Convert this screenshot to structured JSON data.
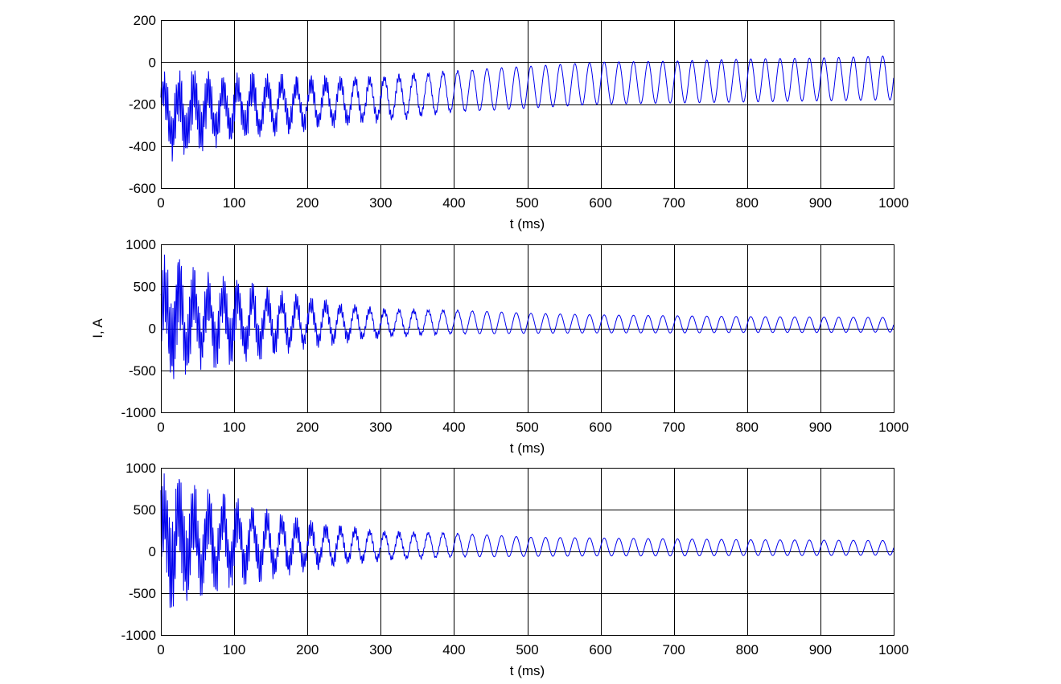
{
  "chart_data": [
    {
      "type": "line",
      "title": "",
      "xlabel": "t (ms)",
      "ylabel": "",
      "xlim": [
        0,
        1000
      ],
      "ylim": [
        -600,
        200
      ],
      "xticks": [
        "0",
        "100",
        "200",
        "300",
        "400",
        "500",
        "600",
        "700",
        "800",
        "900",
        "1000"
      ],
      "yticks": [
        "200",
        "0",
        "-200",
        "-400",
        "-600"
      ],
      "grid": true,
      "series": [
        {
          "color": "#0000ee",
          "description_of_values": "oscillating signal, 50 Hz, decaying noisy transient",
          "points": [
            {
              "t": 0,
              "min": -310,
              "max": -50
            },
            {
              "t": 10,
              "min": -480,
              "max": -40
            },
            {
              "t": 50,
              "min": -430,
              "max": -40
            },
            {
              "t": 100,
              "min": -390,
              "max": -50
            },
            {
              "t": 200,
              "min": -330,
              "max": -60
            },
            {
              "t": 300,
              "min": -290,
              "max": -60
            },
            {
              "t": 400,
              "min": -240,
              "max": -40
            },
            {
              "t": 500,
              "min": -220,
              "max": -20
            },
            {
              "t": 600,
              "min": -200,
              "max": 0
            },
            {
              "t": 700,
              "min": -195,
              "max": 5
            },
            {
              "t": 800,
              "min": -190,
              "max": 15
            },
            {
              "t": 900,
              "min": -185,
              "max": 20
            },
            {
              "t": 1000,
              "min": -180,
              "max": 30
            }
          ]
        }
      ]
    },
    {
      "type": "line",
      "title": "",
      "xlabel": "t (ms)",
      "ylabel": "I, A",
      "xlim": [
        0,
        1000
      ],
      "ylim": [
        -1000,
        1000
      ],
      "xticks": [
        "0",
        "100",
        "200",
        "300",
        "400",
        "500",
        "600",
        "700",
        "800",
        "900",
        "1000"
      ],
      "yticks": [
        "1000",
        "500",
        "0",
        "-500",
        "-1000"
      ],
      "grid": true,
      "series": [
        {
          "color": "#0000ee",
          "points": [
            {
              "t": 0,
              "min": -650,
              "max": 950
            },
            {
              "t": 50,
              "min": -520,
              "max": 700
            },
            {
              "t": 100,
              "min": -420,
              "max": 600
            },
            {
              "t": 150,
              "min": -350,
              "max": 480
            },
            {
              "t": 200,
              "min": -250,
              "max": 380
            },
            {
              "t": 300,
              "min": -120,
              "max": 240
            },
            {
              "t": 400,
              "min": -70,
              "max": 220
            },
            {
              "t": 500,
              "min": -60,
              "max": 180
            },
            {
              "t": 600,
              "min": -55,
              "max": 160
            },
            {
              "t": 700,
              "min": -55,
              "max": 150
            },
            {
              "t": 800,
              "min": -50,
              "max": 140
            },
            {
              "t": 900,
              "min": -50,
              "max": 135
            },
            {
              "t": 1000,
              "min": -45,
              "max": 130
            }
          ]
        }
      ]
    },
    {
      "type": "line",
      "title": "",
      "xlabel": "t (ms)",
      "ylabel": "",
      "xlim": [
        0,
        1000
      ],
      "ylim": [
        -1000,
        1000
      ],
      "xticks": [
        "0",
        "100",
        "200",
        "300",
        "400",
        "500",
        "600",
        "700",
        "800",
        "900",
        "1000"
      ],
      "yticks": [
        "1000",
        "500",
        "0",
        "-500",
        "-1000"
      ],
      "grid": true,
      "series": [
        {
          "color": "#0000ee",
          "points": [
            {
              "t": 0,
              "min": -720,
              "max": 950
            },
            {
              "t": 50,
              "min": -540,
              "max": 780
            },
            {
              "t": 100,
              "min": -420,
              "max": 650
            },
            {
              "t": 150,
              "min": -340,
              "max": 500
            },
            {
              "t": 200,
              "min": -240,
              "max": 380
            },
            {
              "t": 300,
              "min": -120,
              "max": 250
            },
            {
              "t": 400,
              "min": -70,
              "max": 220
            },
            {
              "t": 500,
              "min": -60,
              "max": 170
            },
            {
              "t": 600,
              "min": -55,
              "max": 160
            },
            {
              "t": 700,
              "min": -55,
              "max": 150
            },
            {
              "t": 800,
              "min": -50,
              "max": 140
            },
            {
              "t": 900,
              "min": -50,
              "max": 135
            },
            {
              "t": 1000,
              "min": -45,
              "max": 130
            }
          ]
        }
      ]
    }
  ]
}
